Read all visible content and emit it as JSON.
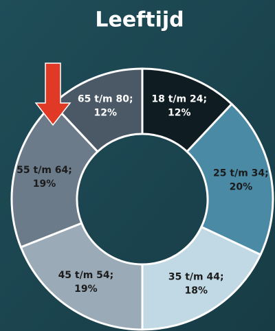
{
  "chart_data": {
    "type": "donut",
    "title": "Leeftijd",
    "categories": [
      "18 t/m 24;",
      "25 t/m 34;",
      "35 t/m 44;",
      "45 t/m 54;",
      "55 t/m 64;",
      "65 t/m 80;"
    ],
    "values": [
      12,
      20,
      18,
      19,
      19,
      12
    ],
    "value_labels": [
      "12%",
      "20%",
      "18%",
      "19%",
      "19%",
      "12%"
    ],
    "colors": [
      "#0f1d23",
      "#4a8aa5",
      "#c1d9e4",
      "#9aaab6",
      "#6b7b89",
      "#4b5866"
    ]
  }
}
